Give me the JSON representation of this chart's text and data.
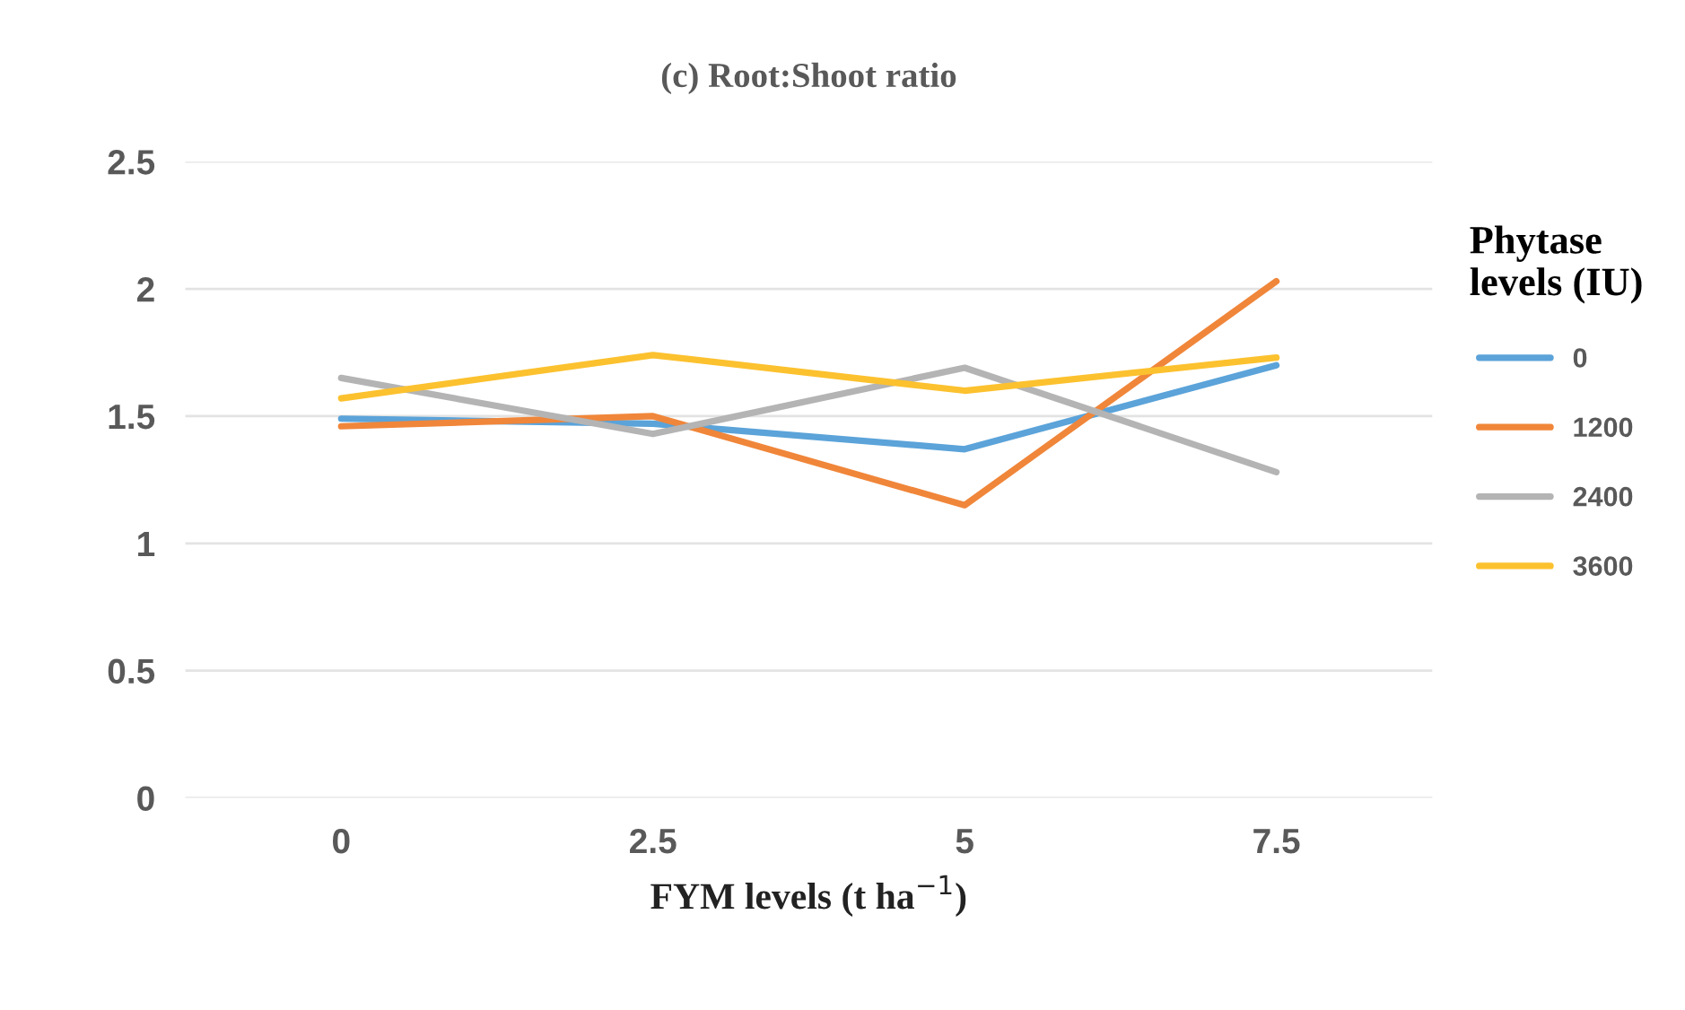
{
  "chart_data": {
    "type": "line",
    "title": "(c) Root:Shoot ratio",
    "xlabel": "FYM levels (t ha$^{−1}$)",
    "legend_title": "Phytase\nlevels (IU)",
    "categories": [
      "0",
      "2.5",
      "5",
      "7.5"
    ],
    "series": [
      {
        "name": "0",
        "color": "#5ba3d9",
        "values": [
          1.49,
          1.47,
          1.37,
          1.7
        ]
      },
      {
        "name": "1200",
        "color": "#f0863a",
        "values": [
          1.46,
          1.5,
          1.15,
          2.03
        ]
      },
      {
        "name": "2400",
        "color": "#b4b4b4",
        "values": [
          1.65,
          1.43,
          1.69,
          1.28
        ]
      },
      {
        "name": "3600",
        "color": "#fcc12e",
        "values": [
          1.57,
          1.74,
          1.6,
          1.73
        ]
      }
    ],
    "ylim": [
      0,
      2.5
    ],
    "yticks": [
      0,
      0.5,
      1,
      1.5,
      2,
      2.5
    ],
    "grid": "y",
    "legend": "right",
    "marker": "none",
    "line_style": "solid"
  }
}
